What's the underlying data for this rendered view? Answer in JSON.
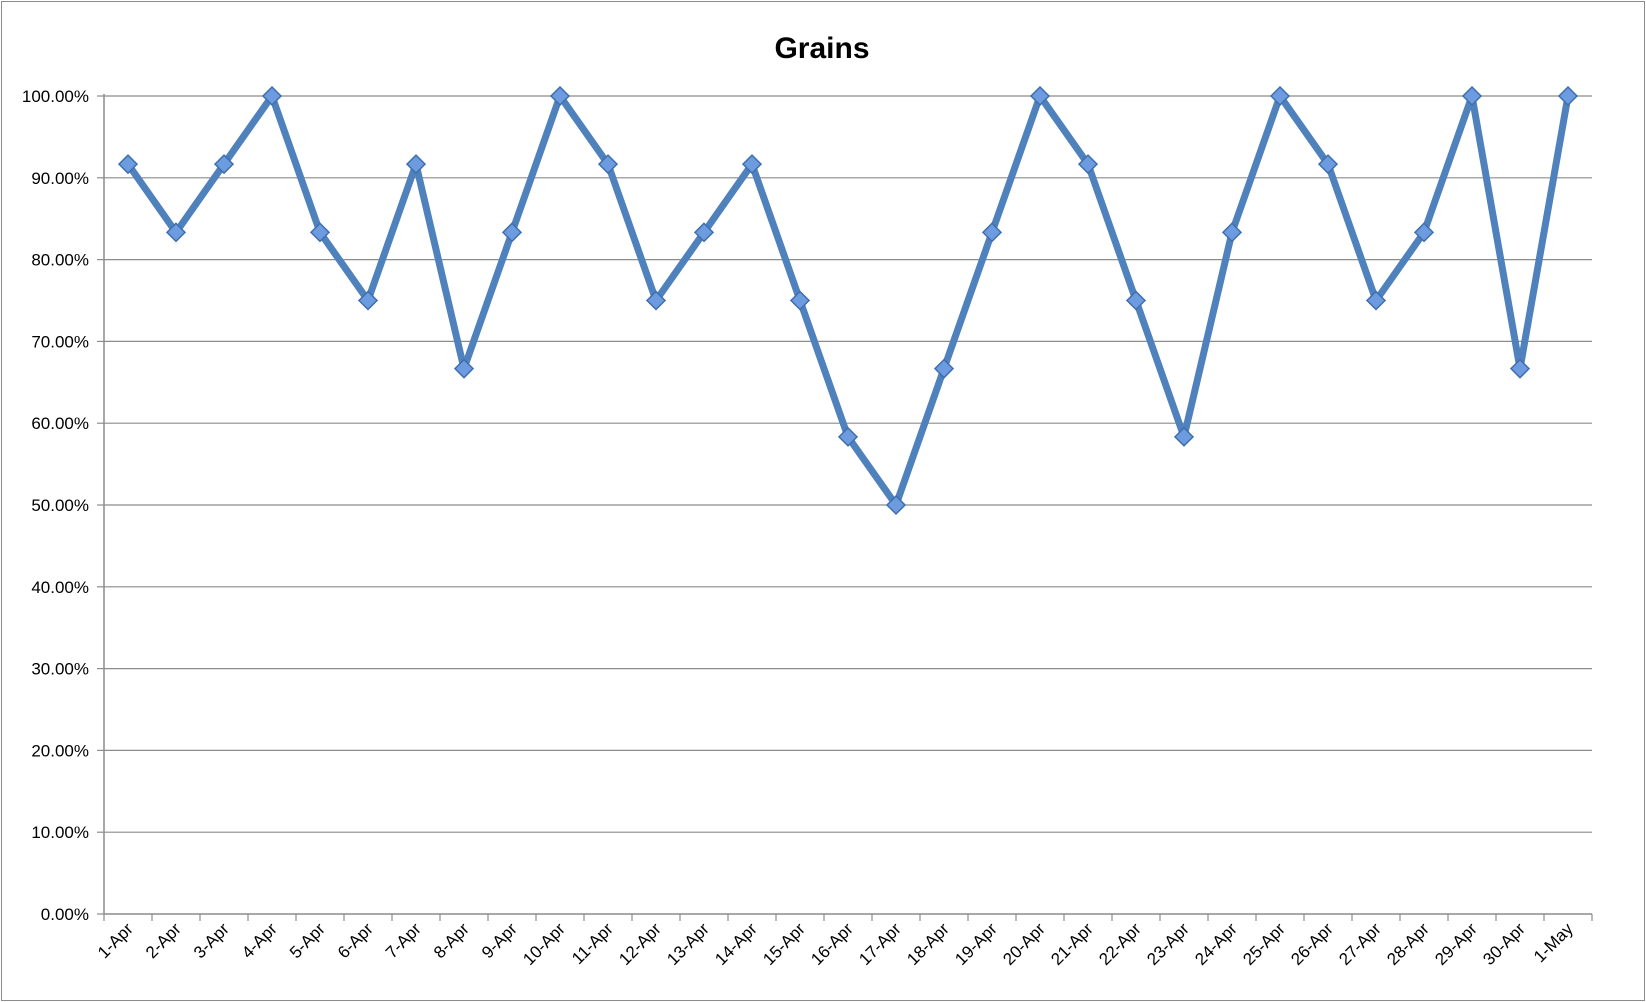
{
  "chart_data": {
    "type": "line",
    "title": "Grains",
    "xlabel": "",
    "ylabel": "",
    "ylim": [
      0,
      100
    ],
    "yticks": [
      "0.00%",
      "10.00%",
      "20.00%",
      "30.00%",
      "40.00%",
      "50.00%",
      "60.00%",
      "70.00%",
      "80.00%",
      "90.00%",
      "100.00%"
    ],
    "categories": [
      "1-Apr",
      "2-Apr",
      "3-Apr",
      "4-Apr",
      "5-Apr",
      "6-Apr",
      "7-Apr",
      "8-Apr",
      "9-Apr",
      "10-Apr",
      "11-Apr",
      "12-Apr",
      "13-Apr",
      "14-Apr",
      "15-Apr",
      "16-Apr",
      "17-Apr",
      "18-Apr",
      "19-Apr",
      "20-Apr",
      "21-Apr",
      "22-Apr",
      "23-Apr",
      "24-Apr",
      "25-Apr",
      "26-Apr",
      "27-Apr",
      "28-Apr",
      "29-Apr",
      "30-Apr",
      "1-May"
    ],
    "series": [
      {
        "values": [
          91.67,
          83.33,
          91.67,
          100,
          83.33,
          75,
          91.67,
          66.67,
          83.33,
          100,
          91.67,
          75,
          83.33,
          91.67,
          75,
          58.33,
          50,
          66.67,
          83.33,
          100,
          91.67,
          75,
          58.33,
          83.33,
          100,
          91.67,
          75,
          83.33,
          100,
          66.67,
          100
        ],
        "color": "#4f81bd",
        "marker": "diamond"
      }
    ],
    "grid": true,
    "legend": "none"
  }
}
